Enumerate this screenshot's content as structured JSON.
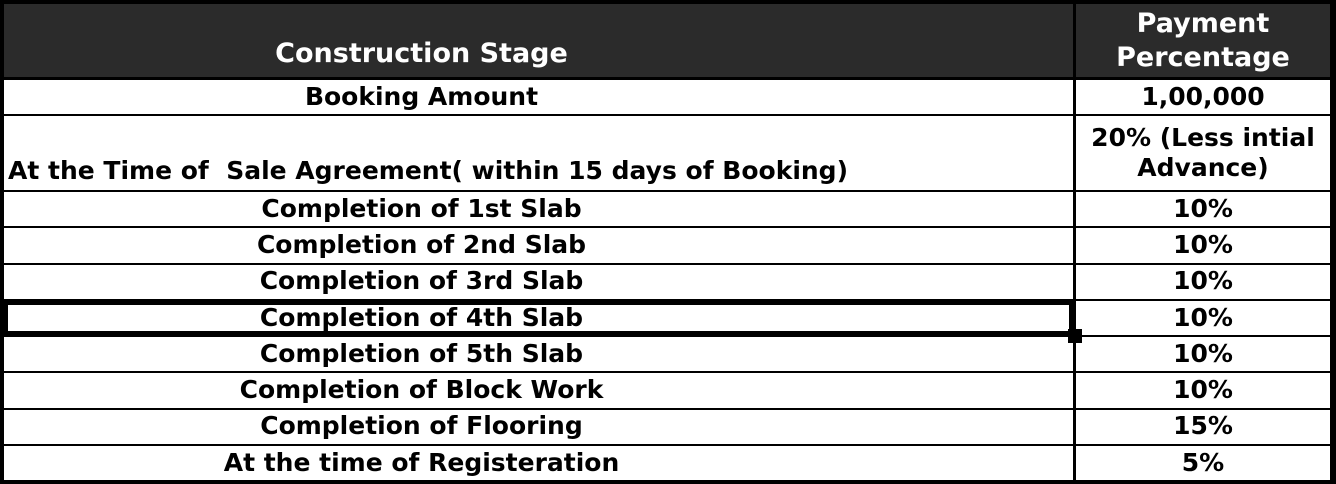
{
  "table": {
    "columns": [
      {
        "label": "Construction Stage"
      },
      {
        "label": "Payment Percentage"
      }
    ],
    "rows": [
      {
        "stage": "Booking Amount",
        "payment": "1,00,000"
      },
      {
        "stage": "At the Time of  Sale Agreement( within 15 days of Booking)",
        "payment": "20% (Less intial Advance)",
        "align": "left",
        "tall": true
      },
      {
        "stage": "Completion of 1st Slab",
        "payment": "10%"
      },
      {
        "stage": "Completion of 2nd Slab",
        "payment": "10%"
      },
      {
        "stage": "Completion of 3rd Slab",
        "payment": "10%"
      },
      {
        "stage": "Completion of 4th Slab",
        "payment": "10%",
        "selected": true
      },
      {
        "stage": "Completion of 5th Slab",
        "payment": "10%"
      },
      {
        "stage": "Completion of Block Work",
        "payment": "10%"
      },
      {
        "stage": "Completion of Flooring",
        "payment": "15%"
      },
      {
        "stage": "At the time of Registeration",
        "payment": "5%"
      }
    ],
    "colors": {
      "header_bg": "#2b2b2b",
      "header_text": "#ffffff",
      "body_text": "#000000",
      "grid": "#000000"
    }
  }
}
